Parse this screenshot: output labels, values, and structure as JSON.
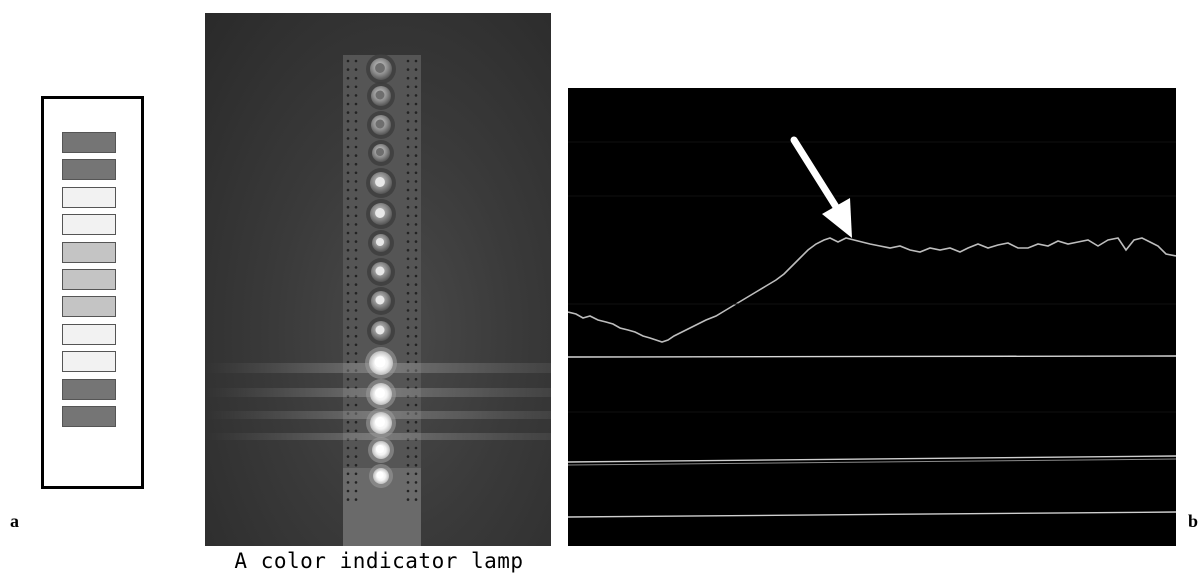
{
  "panel_labels": {
    "a": "a",
    "b": "b"
  },
  "caption": "A color indicator lamp",
  "schematic": {
    "bars": [
      {
        "color": "#757575"
      },
      {
        "color": "#757575"
      },
      {
        "color": "#f2f2f2"
      },
      {
        "color": "#f2f2f2"
      },
      {
        "color": "#c4c4c4"
      },
      {
        "color": "#c4c4c4"
      },
      {
        "color": "#c4c4c4"
      },
      {
        "color": "#f2f2f2"
      },
      {
        "color": "#f2f2f2"
      },
      {
        "color": "#757575"
      },
      {
        "color": "#757575"
      }
    ]
  },
  "scope": {
    "background": "#000000",
    "trace_color": "#bdbdbd",
    "arrow": "arrow-icon pointing to the peak of the upper trace"
  }
}
